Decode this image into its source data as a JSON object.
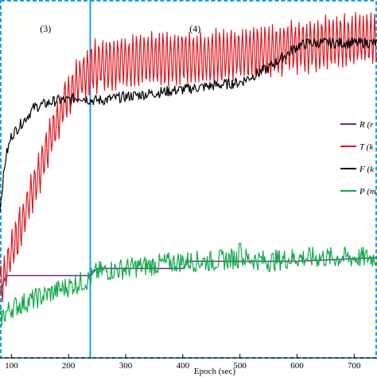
{
  "chart_data": {
    "type": "line",
    "xlabel": "Epoch (sec)",
    "ylabel": "",
    "title": "",
    "xlim": [
      80,
      740
    ],
    "ylim": [
      0,
      100
    ],
    "xticks": [
      100,
      200,
      300,
      400,
      500,
      600,
      700
    ],
    "grid": false,
    "legend_position": "right",
    "regions": [
      {
        "label": "(3)",
        "x_start": 80,
        "x_end": 238
      },
      {
        "label": "(4)",
        "x_start": 238,
        "x_end": 740
      }
    ],
    "series": [
      {
        "name": "R (r",
        "color": "#6a2c8c",
        "x": [
          80,
          90,
          100,
          238,
          250,
          400,
          410,
          600,
          740
        ],
        "y": [
          18,
          23,
          23,
          23,
          25,
          25,
          27,
          27,
          28
        ]
      },
      {
        "name": "T (k",
        "color": "#e0141c",
        "x": [
          80,
          90,
          100,
          110,
          120,
          130,
          140,
          150,
          160,
          170,
          180,
          190,
          200,
          210,
          220,
          230,
          238,
          250,
          300,
          350,
          400,
          450,
          500,
          550,
          600,
          650,
          700,
          740
        ],
        "y": [
          20,
          24,
          30,
          34,
          38,
          44,
          48,
          52,
          58,
          62,
          66,
          70,
          73,
          76,
          78,
          79,
          80,
          82,
          83,
          83,
          84,
          84,
          85,
          86,
          87,
          88,
          89,
          89
        ],
        "oscillation_amplitude": 7
      },
      {
        "name": "F (k",
        "color": "#000000",
        "x": [
          80,
          90,
          100,
          120,
          140,
          160,
          180,
          200,
          220,
          238,
          260,
          300,
          350,
          400,
          450,
          500,
          550,
          600,
          620,
          650,
          700,
          740
        ],
        "y": [
          42,
          56,
          62,
          66,
          70,
          71,
          72,
          72,
          73,
          72,
          72,
          73,
          74,
          75,
          76,
          77,
          81,
          87,
          88,
          88,
          88,
          88
        ]
      },
      {
        "name": "P (m",
        "color": "#12a84a",
        "x": [
          80,
          100,
          150,
          200,
          238,
          250,
          300,
          350,
          400,
          450,
          500,
          550,
          600,
          650,
          700,
          740
        ],
        "y": [
          11,
          14,
          17,
          20,
          22,
          24,
          25,
          26,
          27,
          27,
          28,
          27,
          28,
          28,
          28,
          28
        ],
        "spike": {
          "x": 500,
          "y": 32
        }
      }
    ]
  }
}
